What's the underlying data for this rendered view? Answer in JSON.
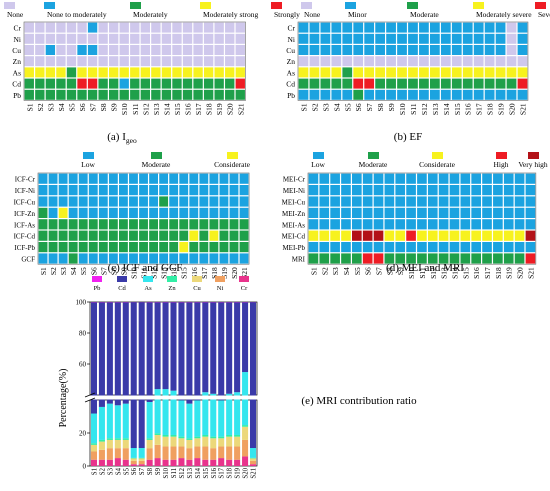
{
  "sites": [
    "S1",
    "S2",
    "S3",
    "S4",
    "S5",
    "S6",
    "S7",
    "S8",
    "S9",
    "S10",
    "S11",
    "S12",
    "S13",
    "S14",
    "S15",
    "S16",
    "S17",
    "S18",
    "S19",
    "S20",
    "S21"
  ],
  "chart_data": [
    {
      "id": "a",
      "type": "heatmap",
      "caption": "(a) I",
      "caption_sub": "geo",
      "legend": [
        {
          "label": "None",
          "code": 0
        },
        {
          "label": "None to moderately",
          "code": 1
        },
        {
          "label": "Moderately",
          "code": 2
        },
        {
          "label": "Moderately strong",
          "code": 3
        },
        {
          "label": "Strongly",
          "code": 4
        }
      ],
      "colors": [
        "#cfc8ec",
        "#1ba3e0",
        "#1fa04a",
        "#f7f21e",
        "#ee1c24"
      ],
      "rows": [
        "Cr",
        "Ni",
        "Cu",
        "Zn",
        "As",
        "Cd",
        "Pb"
      ],
      "values": [
        [
          0,
          0,
          0,
          0,
          0,
          0,
          1,
          0,
          0,
          0,
          0,
          0,
          0,
          0,
          0,
          0,
          0,
          0,
          0,
          0,
          0
        ],
        [
          0,
          0,
          0,
          0,
          0,
          0,
          0,
          0,
          0,
          0,
          0,
          0,
          0,
          0,
          0,
          0,
          0,
          0,
          0,
          0,
          0
        ],
        [
          0,
          0,
          1,
          0,
          0,
          1,
          1,
          0,
          0,
          0,
          0,
          0,
          0,
          0,
          0,
          0,
          0,
          0,
          0,
          0,
          0
        ],
        [
          0,
          0,
          0,
          0,
          0,
          0,
          0,
          0,
          0,
          0,
          0,
          0,
          0,
          0,
          0,
          0,
          0,
          0,
          0,
          0,
          0
        ],
        [
          3,
          3,
          3,
          3,
          2,
          3,
          3,
          3,
          3,
          3,
          3,
          3,
          3,
          3,
          3,
          3,
          3,
          3,
          3,
          3,
          3
        ],
        [
          2,
          2,
          2,
          2,
          2,
          4,
          4,
          2,
          2,
          1,
          2,
          2,
          2,
          2,
          2,
          2,
          2,
          2,
          2,
          2,
          4
        ],
        [
          2,
          2,
          2,
          2,
          2,
          2,
          2,
          2,
          2,
          2,
          2,
          2,
          2,
          2,
          2,
          2,
          2,
          2,
          2,
          2,
          2
        ]
      ]
    },
    {
      "id": "b",
      "type": "heatmap",
      "caption": "(b) EF",
      "legend": [
        {
          "label": "None",
          "code": 0
        },
        {
          "label": "Minor",
          "code": 1
        },
        {
          "label": "Moderate",
          "code": 2
        },
        {
          "label": "Moderately severe",
          "code": 3
        },
        {
          "label": "Severe",
          "code": 4
        }
      ],
      "colors": [
        "#cfc8ec",
        "#1ba3e0",
        "#1fa04a",
        "#f7f21e",
        "#ee1c24"
      ],
      "rows": [
        "Cr",
        "Ni",
        "Cu",
        "Zn",
        "As",
        "Cd",
        "Pb"
      ],
      "values": [
        [
          1,
          1,
          1,
          1,
          1,
          1,
          1,
          1,
          1,
          1,
          1,
          1,
          1,
          1,
          1,
          1,
          1,
          1,
          1,
          0,
          1
        ],
        [
          1,
          1,
          1,
          1,
          1,
          1,
          1,
          1,
          1,
          1,
          1,
          1,
          1,
          1,
          1,
          1,
          1,
          1,
          1,
          0,
          1
        ],
        [
          1,
          1,
          1,
          1,
          1,
          1,
          1,
          1,
          1,
          1,
          1,
          1,
          1,
          1,
          1,
          1,
          1,
          1,
          1,
          0,
          1
        ],
        [
          0,
          0,
          0,
          0,
          0,
          0,
          0,
          0,
          0,
          0,
          0,
          0,
          0,
          0,
          0,
          0,
          0,
          0,
          0,
          0,
          0
        ],
        [
          3,
          3,
          3,
          3,
          2,
          3,
          3,
          3,
          3,
          3,
          3,
          3,
          3,
          3,
          3,
          3,
          3,
          3,
          3,
          3,
          3
        ],
        [
          2,
          2,
          2,
          2,
          2,
          4,
          4,
          2,
          2,
          2,
          2,
          2,
          2,
          2,
          2,
          2,
          2,
          2,
          2,
          2,
          4
        ],
        [
          1,
          1,
          1,
          1,
          1,
          2,
          1,
          1,
          1,
          1,
          1,
          1,
          1,
          1,
          1,
          1,
          1,
          1,
          1,
          1,
          1
        ]
      ]
    },
    {
      "id": "c",
      "type": "heatmap",
      "caption": "(c) ICF and GCF",
      "legend": [
        {
          "label": "Low",
          "code": 0
        },
        {
          "label": "Moderate",
          "code": 1
        },
        {
          "label": "Considerate",
          "code": 2
        }
      ],
      "colors": [
        "#1ba3e0",
        "#1fa04a",
        "#f7f21e"
      ],
      "rows": [
        "ICF-Cr",
        "ICF-Ni",
        "ICF-Cu",
        "ICF-Zn",
        "ICF-As",
        "ICF-Cd",
        "ICF-Pb",
        "GCF"
      ],
      "values": [
        [
          0,
          0,
          0,
          0,
          0,
          0,
          0,
          0,
          0,
          0,
          0,
          0,
          0,
          0,
          0,
          0,
          0,
          0,
          0,
          0,
          0
        ],
        [
          0,
          0,
          0,
          0,
          0,
          0,
          0,
          0,
          0,
          0,
          0,
          0,
          0,
          0,
          0,
          0,
          0,
          0,
          0,
          0,
          0
        ],
        [
          0,
          0,
          0,
          0,
          0,
          0,
          0,
          0,
          0,
          0,
          0,
          0,
          1,
          0,
          0,
          0,
          0,
          0,
          0,
          0,
          0
        ],
        [
          1,
          0,
          2,
          0,
          0,
          0,
          0,
          0,
          0,
          0,
          0,
          0,
          0,
          0,
          0,
          0,
          0,
          0,
          0,
          0,
          0
        ],
        [
          1,
          1,
          1,
          1,
          1,
          1,
          1,
          1,
          1,
          1,
          1,
          1,
          1,
          1,
          1,
          1,
          1,
          1,
          1,
          1,
          1
        ],
        [
          1,
          1,
          1,
          1,
          1,
          1,
          1,
          1,
          1,
          1,
          1,
          1,
          1,
          1,
          1,
          2,
          1,
          2,
          1,
          1,
          1
        ],
        [
          1,
          1,
          1,
          1,
          1,
          1,
          1,
          1,
          1,
          1,
          1,
          1,
          1,
          1,
          2,
          1,
          1,
          1,
          1,
          1,
          1
        ],
        [
          0,
          0,
          0,
          1,
          0,
          0,
          0,
          0,
          0,
          0,
          0,
          0,
          0,
          0,
          0,
          0,
          0,
          0,
          0,
          0,
          0
        ]
      ]
    },
    {
      "id": "d",
      "type": "heatmap",
      "caption": "(d) MEI and MRI",
      "legend": [
        {
          "label": "Low",
          "code": 0
        },
        {
          "label": "Moderate",
          "code": 1
        },
        {
          "label": "Considerate",
          "code": 2
        },
        {
          "label": "High",
          "code": 3
        },
        {
          "label": "Very high",
          "code": 4
        }
      ],
      "colors": [
        "#1ba3e0",
        "#1fa04a",
        "#f7f21e",
        "#ee1c24",
        "#b31218"
      ],
      "rows": [
        "MEI-Cr",
        "MEI-Ni",
        "MEI-Cu",
        "MEI-Zn",
        "MEI-As",
        "MEI-Cd",
        "MEI-Pb",
        "MRI"
      ],
      "values": [
        [
          0,
          0,
          0,
          0,
          0,
          0,
          0,
          0,
          0,
          0,
          0,
          0,
          0,
          0,
          0,
          0,
          0,
          0,
          0,
          0,
          0
        ],
        [
          0,
          0,
          0,
          0,
          0,
          0,
          0,
          0,
          0,
          0,
          0,
          0,
          0,
          0,
          0,
          0,
          0,
          0,
          0,
          0,
          0
        ],
        [
          0,
          0,
          0,
          0,
          0,
          0,
          0,
          0,
          0,
          0,
          0,
          0,
          0,
          0,
          0,
          0,
          0,
          0,
          0,
          0,
          0
        ],
        [
          0,
          0,
          0,
          0,
          0,
          0,
          0,
          0,
          0,
          0,
          0,
          0,
          0,
          0,
          0,
          0,
          0,
          0,
          0,
          0,
          0
        ],
        [
          0,
          0,
          0,
          0,
          0,
          0,
          0,
          0,
          0,
          0,
          0,
          0,
          0,
          0,
          0,
          0,
          0,
          0,
          0,
          0,
          0
        ],
        [
          2,
          2,
          2,
          2,
          4,
          4,
          4,
          2,
          2,
          3,
          2,
          2,
          2,
          2,
          2,
          2,
          2,
          2,
          2,
          2,
          4
        ],
        [
          0,
          0,
          0,
          0,
          0,
          0,
          0,
          0,
          0,
          0,
          0,
          0,
          0,
          0,
          0,
          0,
          0,
          0,
          0,
          0,
          0
        ],
        [
          1,
          1,
          1,
          1,
          1,
          3,
          3,
          1,
          1,
          1,
          1,
          1,
          1,
          1,
          1,
          1,
          1,
          1,
          1,
          1,
          3
        ]
      ]
    },
    {
      "id": "e",
      "type": "bar",
      "stacked": true,
      "caption": "(e) MRI contribution ratio",
      "ylabel": "Percentage(%)",
      "ylim": [
        0,
        100
      ],
      "axis_break": true,
      "yticks": [
        0,
        20,
        40,
        60,
        80,
        100
      ],
      "categories": [
        "S1",
        "S2",
        "S3",
        "S4",
        "S5",
        "S6",
        "S7",
        "S8",
        "S9",
        "S10",
        "S11",
        "S12",
        "S13",
        "S14",
        "S15",
        "S16",
        "S17",
        "S18",
        "S19",
        "S20",
        "S21"
      ],
      "series_order_bottom_to_top": [
        "Cr",
        "Ni",
        "Cu",
        "Zn",
        "As",
        "Cd",
        "Pb"
      ],
      "series": [
        {
          "name": "Pb",
          "color": "#f020f0",
          "values": [
            0.2,
            0.2,
            0.2,
            0.2,
            0.2,
            0.1,
            0.1,
            0.2,
            0.2,
            0.2,
            0.2,
            0.2,
            0.2,
            0.2,
            0.2,
            0.2,
            0.2,
            0.2,
            0.2,
            0.2,
            0.1
          ]
        },
        {
          "name": "Cd",
          "color": "#3a3aa8",
          "values": [
            68,
            64,
            62,
            63,
            62,
            89,
            89,
            61,
            56,
            56,
            57,
            60,
            62,
            60,
            58,
            59,
            60,
            59,
            58,
            45,
            89
          ]
        },
        {
          "name": "As",
          "color": "#34e6ee",
          "values": [
            18,
            20,
            21,
            20,
            21,
            6,
            6,
            22,
            24,
            25,
            24,
            22,
            21,
            22,
            23,
            23,
            22,
            22,
            23,
            30,
            6
          ]
        },
        {
          "name": "Zn",
          "color": "#33eea6",
          "values": [
            1,
            1,
            1,
            1,
            1,
            0.3,
            0.3,
            1,
            1,
            1,
            1,
            1,
            1,
            1,
            1,
            1,
            1,
            1,
            1,
            1,
            0.3
          ]
        },
        {
          "name": "Cu",
          "color": "#ecd87a",
          "values": [
            4,
            5,
            5,
            5,
            5,
            1.5,
            1.5,
            5,
            6,
            6,
            6,
            5,
            5,
            5,
            6,
            6,
            5,
            6,
            6,
            8,
            1.5
          ]
        },
        {
          "name": "Ni",
          "color": "#f0a060",
          "values": [
            5,
            6,
            7,
            6,
            7,
            2,
            2,
            7,
            8,
            8,
            8,
            7,
            7,
            7,
            8,
            7,
            7,
            8,
            8,
            10,
            2
          ]
        },
        {
          "name": "Cr",
          "color": "#e8338c",
          "values": [
            3.8,
            3.8,
            3.8,
            4.8,
            3.8,
            1.1,
            1.1,
            3.8,
            4.8,
            3.8,
            3.8,
            4.8,
            3.8,
            4.8,
            3.8,
            3.8,
            4.8,
            3.8,
            3.8,
            5.8,
            1.1
          ]
        }
      ]
    }
  ]
}
